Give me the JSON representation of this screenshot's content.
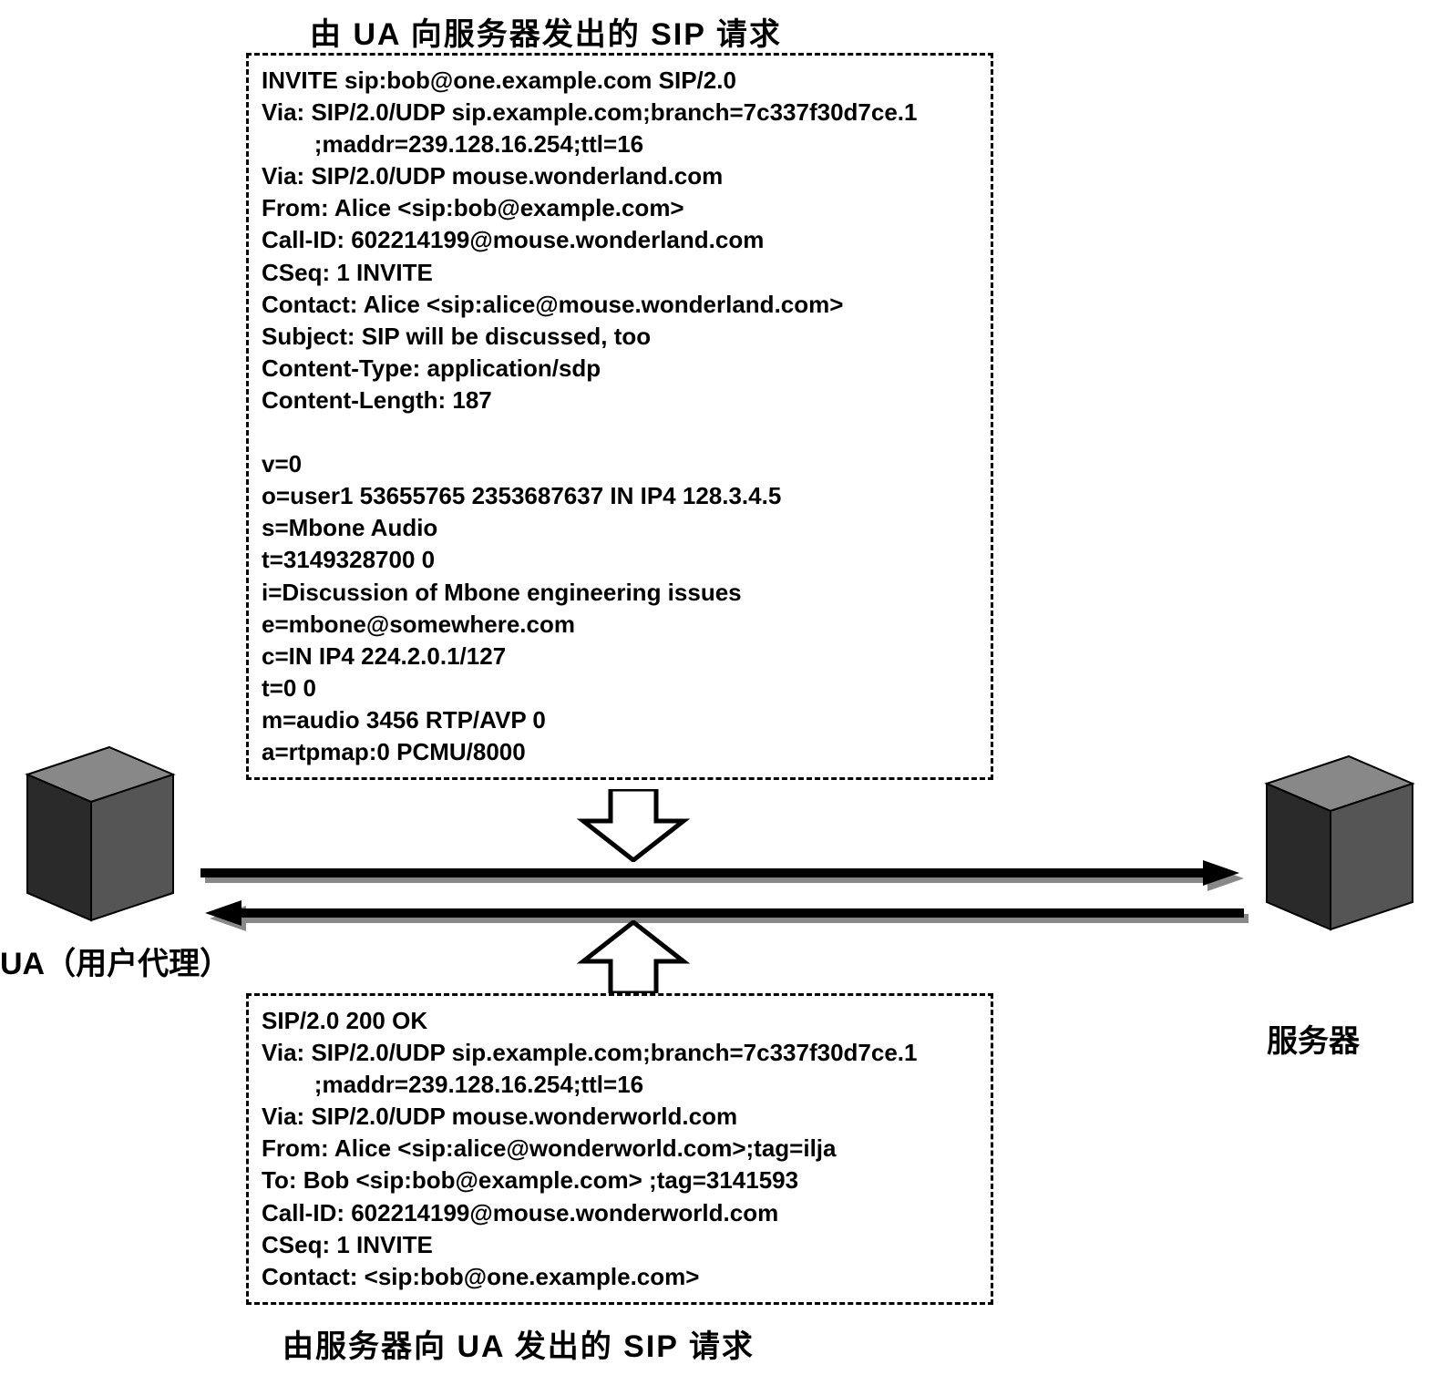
{
  "type": "flowchart",
  "background_color": "#ffffff",
  "text_color": "#000000",
  "box_border": "#000000",
  "box_border_style": "dashed",
  "box_border_width": 3,
  "cube_color_dark": "#2a2a2a",
  "cube_color_mid": "#555555",
  "cube_color_light": "#888888",
  "arrow_color": "#000000",
  "arrow_shadow": "#888888",
  "title_fontsize": 34,
  "title_fontweight": "bold",
  "sip_fontsize": 26,
  "sip_fontweight": "bold",
  "titles": {
    "top": "由 UA 向服务器发出的 SIP 请求",
    "bottom": "由服务器向 UA 发出的 SIP 请求"
  },
  "labels": {
    "ua": "UA（用户代理）",
    "server": "服务器"
  },
  "request": {
    "lines": [
      "INVITE sip:bob@one.example.com SIP/2.0",
      "Via: SIP/2.0/UDP sip.example.com;branch=7c337f30d7ce.1",
      "        ;maddr=239.128.16.254;ttl=16",
      "Via: SIP/2.0/UDP mouse.wonderland.com",
      "From: Alice <sip:bob@example.com>",
      "Call-ID: 602214199@mouse.wonderland.com",
      "CSeq: 1 INVITE",
      "Contact: Alice <sip:alice@mouse.wonderland.com>",
      "Subject: SIP will be discussed, too",
      "Content-Type: application/sdp",
      "Content-Length: 187",
      "",
      "v=0",
      "o=user1 53655765 2353687637 IN IP4 128.3.4.5",
      "s=Mbone Audio",
      "t=3149328700 0",
      "i=Discussion of Mbone engineering issues",
      "e=mbone@somewhere.com",
      "c=IN IP4 224.2.0.1/127",
      "t=0 0",
      "m=audio 3456 RTP/AVP 0",
      "a=rtpmap:0 PCMU/8000"
    ]
  },
  "response": {
    "lines": [
      "SIP/2.0 200 OK",
      "Via: SIP/2.0/UDP sip.example.com;branch=7c337f30d7ce.1",
      "        ;maddr=239.128.16.254;ttl=16",
      "Via: SIP/2.0/UDP mouse.wonderworld.com",
      "From: Alice <sip:alice@wonderworld.com>;tag=ilja",
      "To: Bob <sip:bob@example.com> ;tag=3141593",
      "Call-ID: 602214199@mouse.wonderworld.com",
      "CSeq: 1 INVITE",
      "Contact: <sip:bob@one.example.com>"
    ]
  },
  "arrows": {
    "top": {
      "direction": "right",
      "y": 28
    },
    "bottom": {
      "direction": "left",
      "y": 72
    }
  }
}
